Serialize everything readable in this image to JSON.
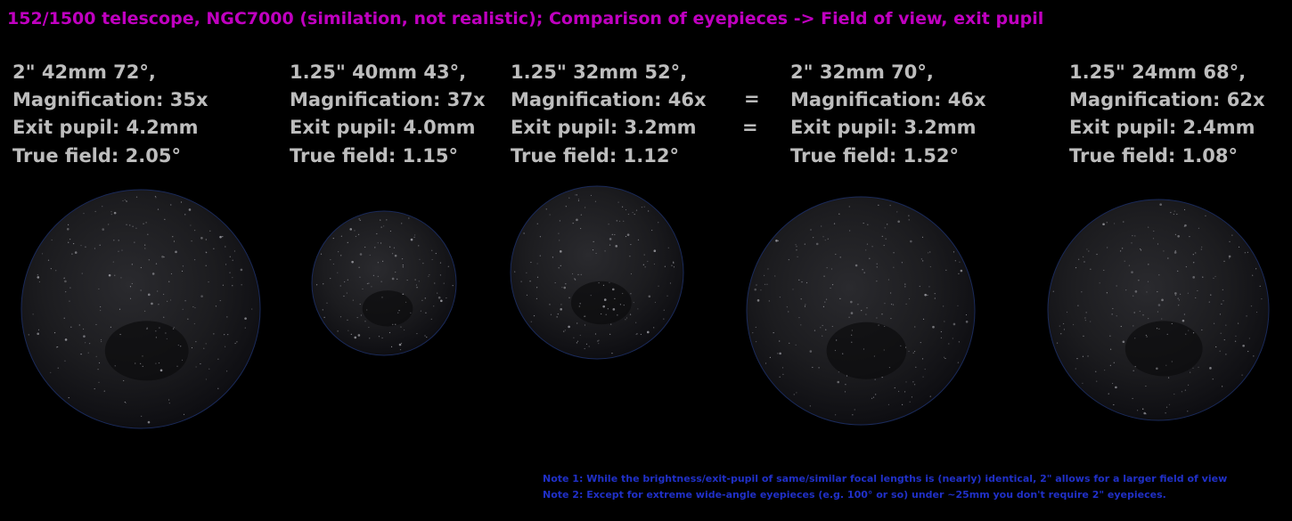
{
  "title": "152/1500 telescope, NGC7000 (similation, not realistic); Comparison of eyepieces -> Field of view, exit pupil",
  "eyepieces": [
    {
      "lines": [
        "2\" 42mm 72°,",
        "Magnification: 35x",
        "Exit pupil: 4.2mm",
        "True field: 2.05°"
      ]
    },
    {
      "lines": [
        "1.25\" 40mm 43°,",
        "Magnification: 37x",
        "Exit pupil: 4.0mm",
        "True field: 1.15°"
      ]
    },
    {
      "lines": [
        "1.25\" 32mm 52°,",
        "Magnification: 46x",
        "Exit pupil: 3.2mm",
        "True field: 1.12°"
      ]
    },
    {
      "lines": [
        "2\" 32mm 70°,",
        "Magnification: 46x",
        "Exit pupil: 3.2mm",
        "True field: 1.52°"
      ]
    },
    {
      "lines": [
        "1.25\" 24mm 68°,",
        "Magnification: 62x",
        "Exit pupil: 2.4mm",
        "True field: 1.08°"
      ]
    }
  ],
  "equals": [
    "=",
    "="
  ],
  "notes": [
    "Note 1: While the brightness/exit-pupil of same/similar focal lengths is (nearly) identical, 2\" allows for a larger field of view",
    "Note 2: Except for extreme wide-angle eyepieces (e.g. 100° or so) under ~25mm you don't require 2\" eyepieces."
  ]
}
